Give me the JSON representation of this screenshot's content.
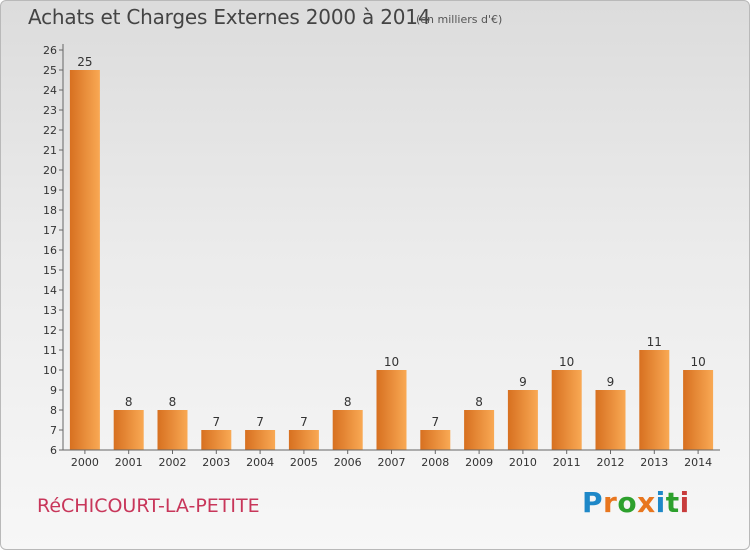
{
  "header": {
    "title": "Achats et Charges Externes 2000 à 2014",
    "unit": "(en milliers d'€)"
  },
  "footer": {
    "town": "RéCHICOURT-LA-PETITE",
    "logo": "Proxiti",
    "logo_colors": [
      "#1e88c8",
      "#e8761e",
      "#2da02d",
      "#e8761e",
      "#1e88c8",
      "#2da02d",
      "#c83c3c"
    ]
  },
  "chart_data": {
    "type": "bar",
    "title": "Achats et Charges Externes 2000 à 2014",
    "subtitle": "(en milliers d'€)",
    "categories": [
      "2000",
      "2001",
      "2002",
      "2003",
      "2004",
      "2005",
      "2006",
      "2007",
      "2008",
      "2009",
      "2010",
      "2011",
      "2012",
      "2013",
      "2014"
    ],
    "values": [
      25,
      8,
      8,
      7,
      7,
      7,
      8,
      10,
      7,
      8,
      9,
      10,
      9,
      11,
      10
    ],
    "data_labels": [
      "25",
      "8",
      "8",
      "7",
      "7",
      "7",
      "8",
      "10",
      "7",
      "8",
      "9",
      "10",
      "9",
      "11",
      "10"
    ],
    "y_ticks": [
      "6",
      "7",
      "8",
      "9",
      "10",
      "11",
      "12",
      "13",
      "14",
      "15",
      "16",
      "17",
      "18",
      "19",
      "20",
      "21",
      "22",
      "23",
      "24",
      "25",
      "26"
    ],
    "ylim": [
      6,
      26
    ],
    "xlabel": "",
    "ylabel": "",
    "grid": false,
    "colors": {
      "bar_light": "#f9a954",
      "bar_dark": "#d77020",
      "axis": "#666666"
    }
  }
}
